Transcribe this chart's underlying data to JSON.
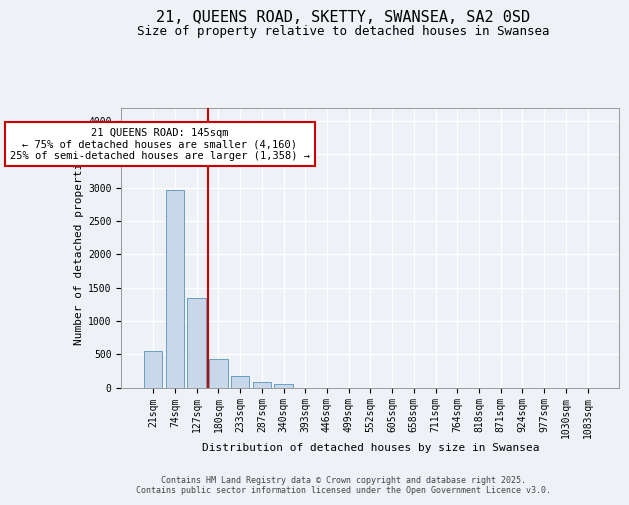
{
  "title1": "21, QUEENS ROAD, SKETTY, SWANSEA, SA2 0SD",
  "title2": "Size of property relative to detached houses in Swansea",
  "xlabel": "Distribution of detached houses by size in Swansea",
  "ylabel": "Number of detached properties",
  "categories": [
    "21sqm",
    "74sqm",
    "127sqm",
    "180sqm",
    "233sqm",
    "287sqm",
    "340sqm",
    "393sqm",
    "446sqm",
    "499sqm",
    "552sqm",
    "605sqm",
    "658sqm",
    "711sqm",
    "764sqm",
    "818sqm",
    "871sqm",
    "924sqm",
    "977sqm",
    "1030sqm",
    "1083sqm"
  ],
  "values": [
    550,
    2960,
    1350,
    430,
    175,
    80,
    50,
    0,
    0,
    0,
    0,
    0,
    0,
    0,
    0,
    0,
    0,
    0,
    0,
    0,
    0
  ],
  "bar_color": "#c8d8ea",
  "bar_edge_color": "#6a9ec0",
  "vline_color": "#cc0000",
  "annotation_text": "21 QUEENS ROAD: 145sqm\n← 75% of detached houses are smaller (4,160)\n25% of semi-detached houses are larger (1,358) →",
  "annotation_box_color": "#ffffff",
  "annotation_box_edge_color": "#cc0000",
  "ylim": [
    0,
    4200
  ],
  "yticks": [
    0,
    500,
    1000,
    1500,
    2000,
    2500,
    3000,
    3500,
    4000
  ],
  "bg_color": "#eef2f7",
  "footer_text": "Contains HM Land Registry data © Crown copyright and database right 2025.\nContains public sector information licensed under the Open Government Licence v3.0.",
  "title_fontsize": 11,
  "subtitle_fontsize": 9,
  "axis_fontsize": 8,
  "tick_fontsize": 7,
  "annotation_fontsize": 7.5
}
